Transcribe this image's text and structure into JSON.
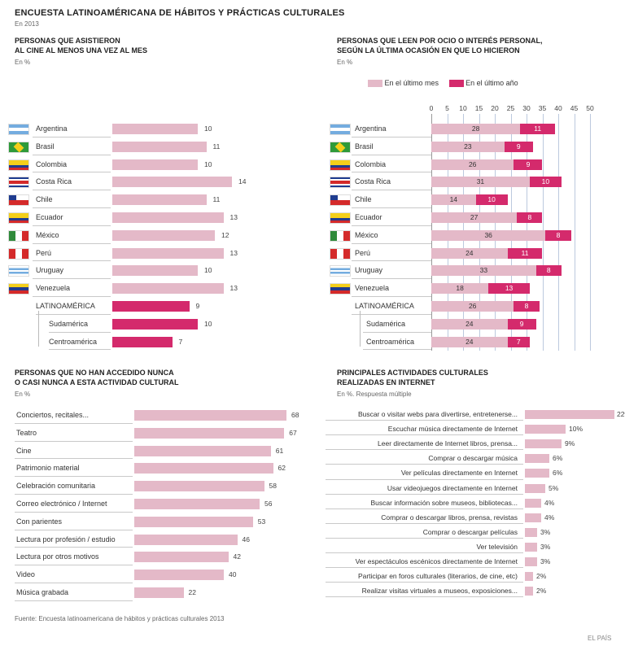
{
  "title": "ENCUESTA LATINOAMÉRICANA DE HÁBITOS Y PRÁCTICAS CULTURALES",
  "year": "En 2013",
  "source": "Fuente: Encuesta latinoamericana de hábitos y prácticas culturales 2013",
  "credit": "EL PAÍS",
  "colors": {
    "light": "#e4b9c8",
    "strong": "#d42a6c",
    "flag_line": "#cccccc"
  },
  "chart_data": [
    {
      "type": "bar",
      "heading": [
        "PERSONAS QUE ASISTIERON",
        "AL CINE AL MENOS UNA VEZ AL MES"
      ],
      "unit": "En %",
      "categories": [
        "Argentina",
        "Brasil",
        "Colombia",
        "Costa Rica",
        "Chile",
        "Ecuador",
        "México",
        "Perú",
        "Uruguay",
        "Venezuela",
        "LATINOAMÉRICA",
        "Sudamérica",
        "Centroamérica"
      ],
      "values": [
        10,
        11,
        10,
        14,
        11,
        13,
        12,
        13,
        10,
        13,
        9,
        10,
        7
      ],
      "highlight": [
        false,
        false,
        false,
        false,
        false,
        false,
        false,
        false,
        false,
        false,
        true,
        true,
        true
      ],
      "flags": [
        "argentina",
        "brasil",
        "colombia",
        "costarica",
        "chile",
        "ecuador",
        "mexico",
        "peru",
        "uruguay",
        "venezuela",
        "",
        "",
        ""
      ]
    },
    {
      "type": "bar",
      "stacked": true,
      "heading": [
        "PERSONAS QUE LEEN POR OCIO O INTERÉS PERSONAL,",
        "SEGÚN LA ÚLTIMA OCASIÓN EN QUE LO HICIERON"
      ],
      "unit": "En %",
      "legend": [
        "En el último mes",
        "En el último año"
      ],
      "legend_placement": "top",
      "x_ticks": [
        0,
        5,
        10,
        15,
        20,
        25,
        30,
        35,
        40,
        45,
        50
      ],
      "xlim": [
        0,
        50
      ],
      "grid": true,
      "categories": [
        "Argentina",
        "Brasil",
        "Colombia",
        "Costa Rica",
        "Chile",
        "Ecuador",
        "México",
        "Perú",
        "Uruguay",
        "Venezuela",
        "LATINOAMÉRICA",
        "Sudamérica",
        "Centroamérica"
      ],
      "series": [
        {
          "name": "En el último mes",
          "values": [
            28,
            23,
            26,
            31,
            14,
            27,
            36,
            24,
            33,
            18,
            26,
            24,
            24
          ]
        },
        {
          "name": "En el último año",
          "values": [
            11,
            9,
            9,
            10,
            10,
            8,
            8,
            11,
            8,
            13,
            8,
            9,
            7
          ]
        }
      ]
    },
    {
      "type": "bar",
      "heading": [
        "PERSONAS QUE NO HAN ACCEDIDO NUNCA",
        "O CASI NUNCA A ESTA ACTIVIDAD CULTURAL"
      ],
      "unit": "En %",
      "categories": [
        "Conciertos, recitales...",
        "Teatro",
        "Cine",
        "Patrimonio material",
        "Celebración comunitaria",
        "Correo electrónico / Internet",
        "Con parientes",
        "Lectura por profesión / estudio",
        "Lectura por otros motivos",
        "Video",
        "Música grabada"
      ],
      "values": [
        68,
        67,
        61,
        62,
        58,
        56,
        53,
        46,
        42,
        40,
        22
      ],
      "xlim": [
        0,
        70
      ]
    },
    {
      "type": "bar",
      "heading": [
        "PRINCIPALES ACTIVIDADES CULTURALES",
        "REALIZADAS EN INTERNET"
      ],
      "unit": "En %. Respuesta múltiple",
      "categories": [
        "Buscar o visitar webs para divertirse, entretenerse...",
        "Escuchar música directamente de Internet",
        "Leer directamente de Internet libros, prensa...",
        "Comprar o descargar música",
        "Ver películas directamente en Internet",
        "Usar videojuegos directamente en Internet",
        "Buscar información sobre museos, bibliotecas...",
        "Comprar o descargar libros, prensa, revistas",
        "Comprar o descargar películas",
        "Ver televisión",
        "Ver espectáculos escénicos directamente de Internet",
        "Participar en foros culturales (literarios, de cine, etc)",
        "Realizar visitas virtuales a museos, exposiciones..."
      ],
      "values": [
        22,
        10,
        9,
        6,
        6,
        5,
        4,
        4,
        3,
        3,
        3,
        2,
        2
      ],
      "labels": [
        "22%",
        "10%",
        "9%",
        "6%",
        "6%",
        "5%",
        "4%",
        "4%",
        "3%",
        "3%",
        "3%",
        "2%",
        "2%"
      ],
      "xlim": [
        0,
        22
      ]
    }
  ]
}
